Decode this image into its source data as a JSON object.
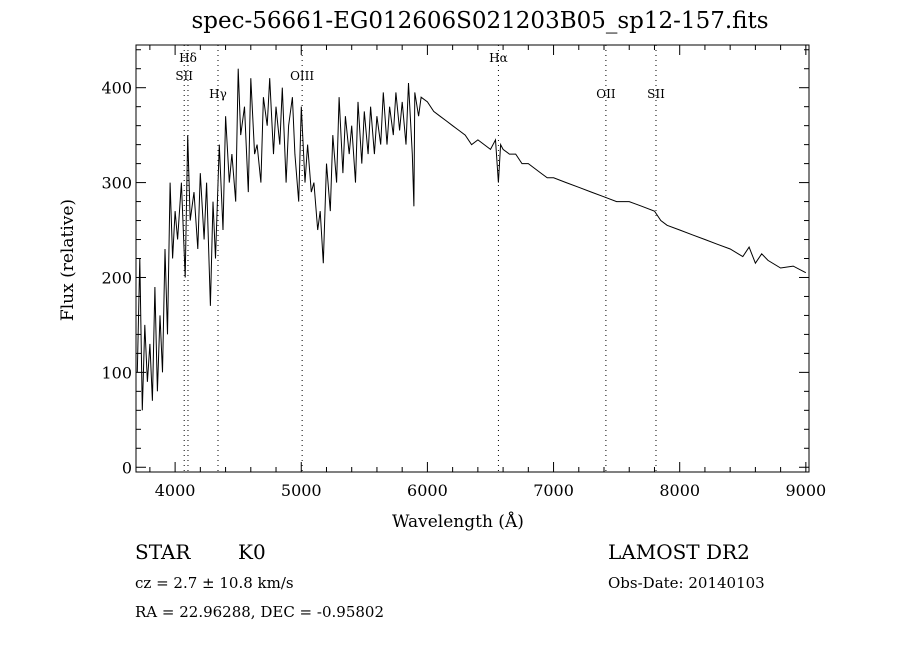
{
  "chart_data": {
    "type": "line",
    "title": "spec-56661-EG012606S021203B05_sp12-157.fits",
    "xlabel": "Wavelength (Å)",
    "ylabel": "Flux (relative)",
    "xlim": [
      3690,
      9025
    ],
    "ylim": [
      -5,
      445
    ],
    "xticks": [
      4000,
      5000,
      6000,
      7000,
      8000,
      9000
    ],
    "yticks": [
      0,
      100,
      200,
      300,
      400
    ],
    "grid": false,
    "lines": [
      {
        "label": "Hδ",
        "wavelength": 4102,
        "row": 0
      },
      {
        "label": "SII",
        "wavelength": 4072,
        "row": 1
      },
      {
        "label": "Hγ",
        "wavelength": 4340,
        "row": 2
      },
      {
        "label": "OIII",
        "wavelength": 5007,
        "row": 1
      },
      {
        "label": "Hα",
        "wavelength": 6563,
        "row": 0
      },
      {
        "label": "OII",
        "wavelength": 7415,
        "row": 2
      },
      {
        "label": "SII",
        "wavelength": 7812,
        "row": 2
      }
    ],
    "series": [
      {
        "name": "spectrum",
        "x": [
          3700,
          3720,
          3740,
          3760,
          3780,
          3800,
          3820,
          3840,
          3860,
          3880,
          3900,
          3920,
          3940,
          3960,
          3980,
          4000,
          4020,
          4050,
          4080,
          4100,
          4120,
          4150,
          4180,
          4200,
          4230,
          4250,
          4280,
          4300,
          4320,
          4350,
          4380,
          4400,
          4430,
          4450,
          4480,
          4500,
          4520,
          4550,
          4580,
          4600,
          4630,
          4650,
          4680,
          4700,
          4730,
          4750,
          4780,
          4800,
          4830,
          4850,
          4880,
          4900,
          4930,
          4950,
          4980,
          5000,
          5030,
          5050,
          5080,
          5100,
          5130,
          5150,
          5175,
          5200,
          5230,
          5250,
          5280,
          5300,
          5330,
          5350,
          5380,
          5400,
          5430,
          5450,
          5480,
          5500,
          5530,
          5550,
          5580,
          5600,
          5630,
          5650,
          5680,
          5700,
          5730,
          5750,
          5780,
          5800,
          5830,
          5850,
          5880,
          5893,
          5900,
          5930,
          5950,
          6000,
          6050,
          6100,
          6150,
          6200,
          6250,
          6300,
          6350,
          6400,
          6450,
          6500,
          6540,
          6563,
          6580,
          6600,
          6650,
          6700,
          6750,
          6800,
          6850,
          6900,
          6950,
          7000,
          7100,
          7200,
          7300,
          7400,
          7500,
          7600,
          7700,
          7800,
          7850,
          7900,
          8000,
          8100,
          8200,
          8300,
          8400,
          8500,
          8550,
          8600,
          8650,
          8700,
          8800,
          8900,
          9000
        ],
        "y": [
          100,
          220,
          60,
          150,
          90,
          130,
          70,
          190,
          80,
          160,
          100,
          230,
          140,
          300,
          220,
          270,
          240,
          300,
          200,
          350,
          260,
          290,
          230,
          310,
          240,
          300,
          170,
          280,
          220,
          340,
          250,
          370,
          300,
          330,
          280,
          420,
          350,
          380,
          290,
          410,
          330,
          340,
          300,
          390,
          360,
          410,
          330,
          380,
          340,
          400,
          300,
          360,
          390,
          330,
          280,
          380,
          300,
          340,
          290,
          300,
          250,
          270,
          215,
          320,
          270,
          350,
          300,
          390,
          310,
          370,
          330,
          360,
          300,
          385,
          320,
          375,
          330,
          380,
          330,
          370,
          340,
          395,
          340,
          380,
          350,
          395,
          355,
          385,
          340,
          405,
          330,
          275,
          395,
          370,
          390,
          385,
          375,
          370,
          365,
          360,
          355,
          350,
          340,
          345,
          340,
          335,
          345,
          300,
          340,
          335,
          330,
          330,
          320,
          320,
          315,
          310,
          305,
          305,
          300,
          295,
          290,
          285,
          280,
          280,
          275,
          270,
          260,
          255,
          250,
          245,
          240,
          235,
          230,
          222,
          232,
          215,
          225,
          218,
          210,
          212,
          205
        ]
      }
    ]
  },
  "footer": {
    "object_class": "STAR",
    "subclass": "K0",
    "survey": "LAMOST DR2",
    "cz": "cz = 2.7 ± 10.8 km/s",
    "obs_date": "Obs-Date: 20140103",
    "coords": "RA =  22.96288, DEC =  -0.95802"
  }
}
